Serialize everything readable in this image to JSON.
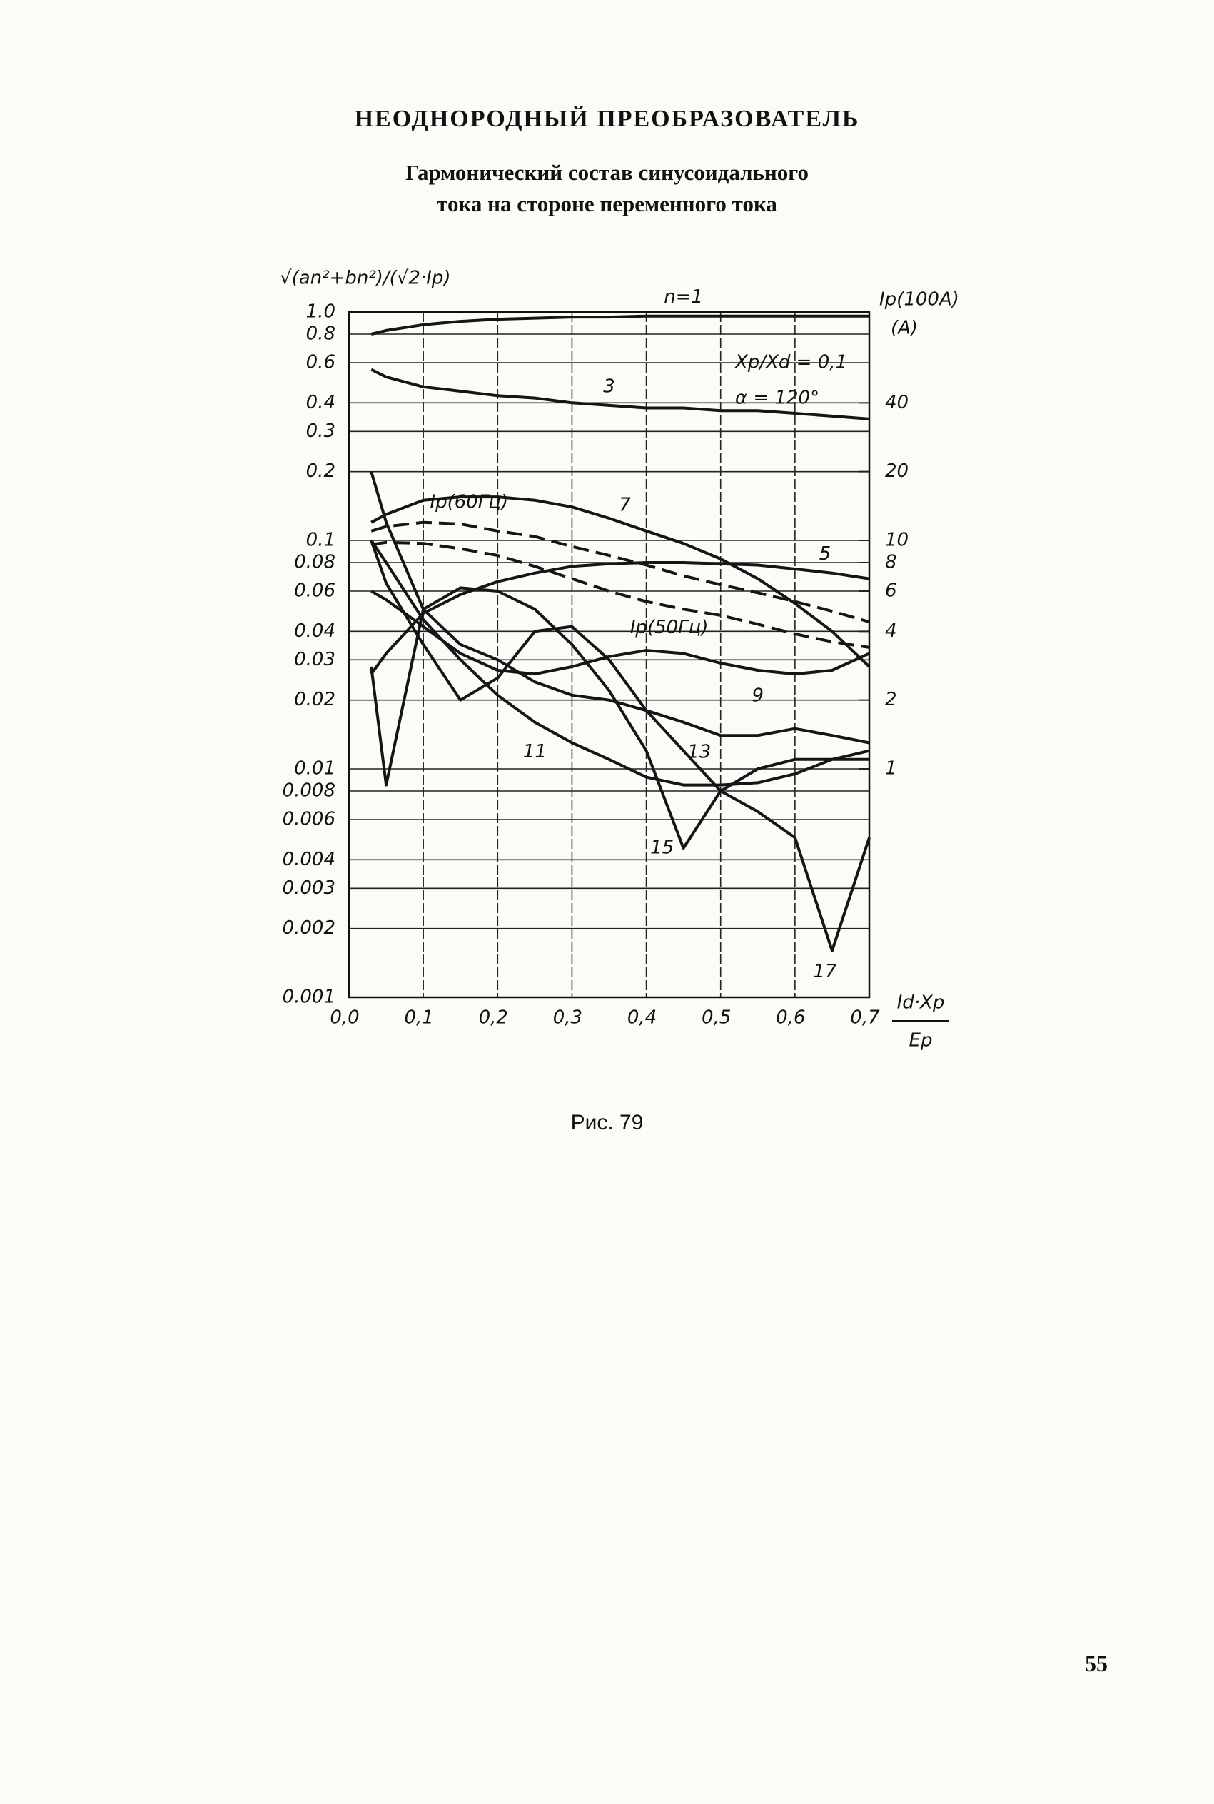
{
  "page": {
    "heading": "НЕОДНОРОДНЫЙ ПРЕОБРАЗОВАТЕЛЬ",
    "subtitle": [
      "Гармонический состав синусоидального",
      "тока на стороне переменного тока"
    ],
    "caption": "Рис. 79",
    "page_number": "55"
  },
  "chart_data": {
    "type": "line",
    "y_label": "√(an²+bn²)/(√2·Ip)",
    "y2_label": [
      "Ip(100A)",
      "(A)"
    ],
    "x_label": [
      "Id·Xp",
      "Ep"
    ],
    "annotations": [
      "Xp/Xd = 0,1",
      "α = 120°"
    ],
    "log_y": true,
    "grid": true,
    "xlim": [
      0,
      0.7
    ],
    "xticks": [
      {
        "value": 0,
        "label": "0,0"
      },
      {
        "value": 0.1,
        "label": "0,1"
      },
      {
        "value": 0.2,
        "label": "0,2"
      },
      {
        "value": 0.3,
        "label": "0,3"
      },
      {
        "value": 0.4,
        "label": "0,4"
      },
      {
        "value": 0.5,
        "label": "0,5"
      },
      {
        "value": 0.6,
        "label": "0,6"
      },
      {
        "value": 0.7,
        "label": "0,7"
      }
    ],
    "ylim": [
      0.001,
      1
    ],
    "yticks": [
      {
        "value": 1,
        "label": "1.0"
      },
      0.8,
      0.6,
      0.4,
      0.3,
      0.2,
      0.1,
      0.08,
      0.06,
      0.04,
      0.03,
      0.02,
      0.01,
      0.008,
      0.006,
      0.004,
      0.003,
      0.002,
      0.001
    ],
    "y2lim": [
      0.1,
      100
    ],
    "y2ticks": [
      40,
      20,
      10,
      8,
      6,
      4,
      2,
      1
    ],
    "x": [
      0.03,
      0.05,
      0.1,
      0.15,
      0.2,
      0.25,
      0.3,
      0.35,
      0.4,
      0.45,
      0.5,
      0.55,
      0.6,
      0.65,
      0.7
    ],
    "series": [
      {
        "name": "n=1",
        "color": "#151515",
        "values": [
          0.8,
          0.83,
          0.88,
          0.91,
          0.93,
          0.94,
          0.95,
          0.95,
          0.96,
          0.96,
          0.96,
          0.96,
          0.96,
          0.96,
          0.96
        ]
      },
      {
        "name": "3",
        "color": "#151515",
        "values": [
          0.56,
          0.52,
          0.47,
          0.45,
          0.43,
          0.42,
          0.4,
          0.39,
          0.38,
          0.38,
          0.37,
          0.37,
          0.36,
          0.35,
          0.34
        ]
      },
      {
        "name": "5",
        "color": "#151515",
        "values": [
          0.026,
          0.032,
          0.048,
          0.058,
          0.066,
          0.072,
          0.077,
          0.079,
          0.08,
          0.08,
          0.079,
          0.078,
          0.075,
          0.072,
          0.068
        ]
      },
      {
        "name": "7",
        "color": "#151515",
        "values": [
          0.12,
          0.13,
          0.15,
          0.155,
          0.155,
          0.15,
          0.14,
          0.125,
          0.11,
          0.097,
          0.083,
          0.068,
          0.053,
          0.04,
          0.028
        ]
      },
      {
        "name": "9",
        "color": "#151515",
        "values": [
          0.06,
          0.055,
          0.042,
          0.032,
          0.027,
          0.026,
          0.028,
          0.031,
          0.033,
          0.032,
          0.029,
          0.027,
          0.026,
          0.027,
          0.032
        ]
      },
      {
        "name": "11",
        "color": "#151515",
        "values": [
          0.1,
          0.08,
          0.045,
          0.03,
          0.021,
          0.016,
          0.013,
          0.011,
          0.0092,
          0.0085,
          0.0085,
          0.0087,
          0.0095,
          0.011,
          0.012
        ]
      },
      {
        "name": "13",
        "color": "#151515",
        "values": [
          0.2,
          0.12,
          0.05,
          0.035,
          0.03,
          0.024,
          0.021,
          0.02,
          0.018,
          0.016,
          0.014,
          0.014,
          0.015,
          0.014,
          0.013
        ]
      },
      {
        "name": "15",
        "color": "#151515",
        "values": [
          0.028,
          0.0085,
          0.05,
          0.062,
          0.06,
          0.05,
          0.035,
          0.022,
          0.012,
          0.0045,
          0.008,
          0.01,
          0.011,
          0.011,
          0.011
        ]
      },
      {
        "name": "17",
        "color": "#151515",
        "values": [
          0.1,
          0.065,
          0.035,
          0.02,
          0.025,
          0.04,
          0.042,
          0.03,
          0.018,
          0.012,
          0.008,
          0.0065,
          0.005,
          0.0016,
          0.005
        ]
      },
      {
        "name": "Ip(60Гц)",
        "color": "#151515",
        "line_style": "dashed",
        "axis": "y2",
        "values": [
          11,
          11.5,
          12,
          11.8,
          11,
          10.4,
          9.4,
          8.6,
          7.8,
          7,
          6.4,
          5.9,
          5.4,
          4.9,
          4.4
        ]
      },
      {
        "name": "Ip(50Гц)",
        "color": "#151515",
        "line_style": "dashed",
        "axis": "y2",
        "values": [
          9.6,
          9.8,
          9.7,
          9.2,
          8.6,
          7.7,
          6.8,
          6,
          5.4,
          5,
          4.7,
          4.3,
          3.9,
          3.6,
          3.4
        ]
      }
    ]
  }
}
